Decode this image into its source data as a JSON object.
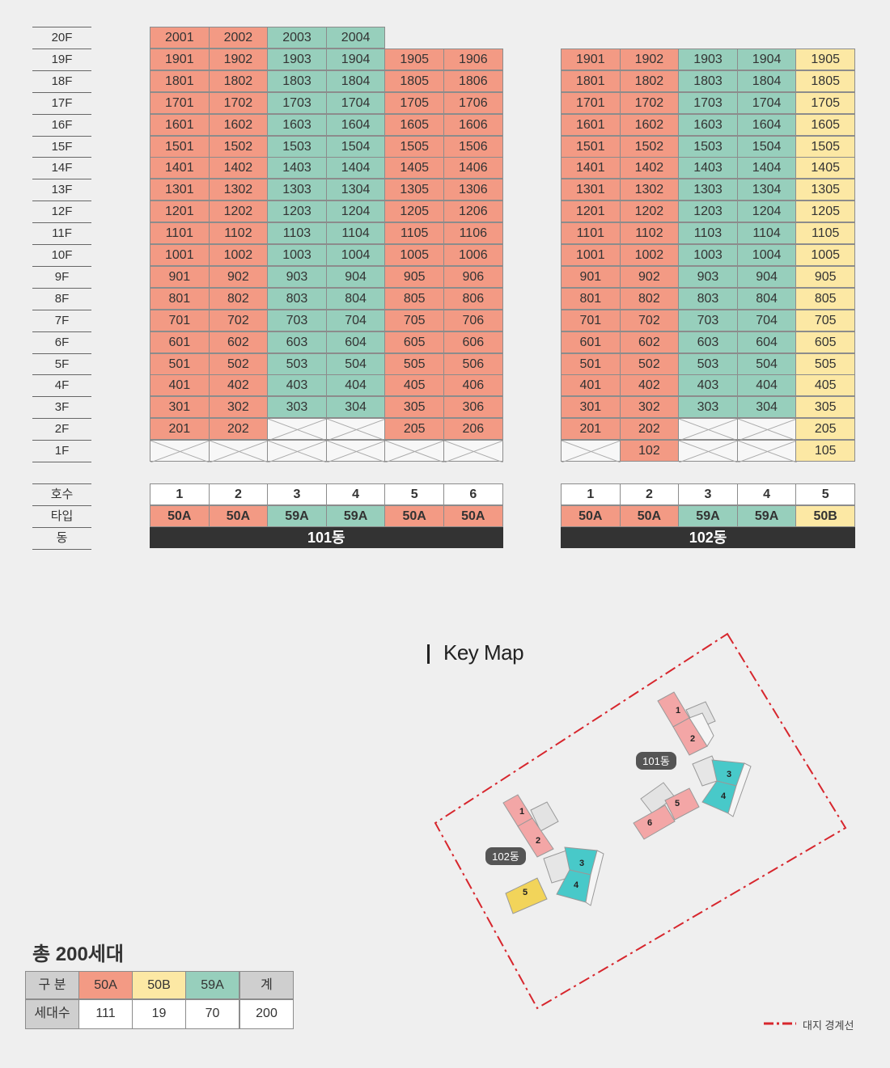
{
  "floors": [
    "20F",
    "19F",
    "18F",
    "17F",
    "16F",
    "15F",
    "14F",
    "13F",
    "12F",
    "11F",
    "10F",
    "9F",
    "8F",
    "7F",
    "6F",
    "5F",
    "4F",
    "3F",
    "2F",
    "1F"
  ],
  "bottom_labels": [
    "호수",
    "타입",
    "동"
  ],
  "colors": {
    "50A": "#f39a84",
    "59A": "#97cfbc",
    "50B": "#fce8a4",
    "boundary": "#d7262d"
  },
  "building101": {
    "name": "101동",
    "units": [
      "1",
      "2",
      "3",
      "4",
      "5",
      "6"
    ],
    "types": [
      "50A",
      "50A",
      "59A",
      "59A",
      "50A",
      "50A"
    ],
    "rows": [
      [
        "2001",
        "2002",
        "2003",
        "2004",
        null,
        null
      ],
      [
        "1901",
        "1902",
        "1903",
        "1904",
        "1905",
        "1906"
      ],
      [
        "1801",
        "1802",
        "1803",
        "1804",
        "1805",
        "1806"
      ],
      [
        "1701",
        "1702",
        "1703",
        "1704",
        "1705",
        "1706"
      ],
      [
        "1601",
        "1602",
        "1603",
        "1604",
        "1605",
        "1606"
      ],
      [
        "1501",
        "1502",
        "1503",
        "1504",
        "1505",
        "1506"
      ],
      [
        "1401",
        "1402",
        "1403",
        "1404",
        "1405",
        "1406"
      ],
      [
        "1301",
        "1302",
        "1303",
        "1304",
        "1305",
        "1306"
      ],
      [
        "1201",
        "1202",
        "1203",
        "1204",
        "1205",
        "1206"
      ],
      [
        "1101",
        "1102",
        "1103",
        "1104",
        "1105",
        "1106"
      ],
      [
        "1001",
        "1002",
        "1003",
        "1004",
        "1005",
        "1006"
      ],
      [
        "901",
        "902",
        "903",
        "904",
        "905",
        "906"
      ],
      [
        "801",
        "802",
        "803",
        "804",
        "805",
        "806"
      ],
      [
        "701",
        "702",
        "703",
        "704",
        "705",
        "706"
      ],
      [
        "601",
        "602",
        "603",
        "604",
        "605",
        "606"
      ],
      [
        "501",
        "502",
        "503",
        "504",
        "505",
        "506"
      ],
      [
        "401",
        "402",
        "403",
        "404",
        "405",
        "406"
      ],
      [
        "301",
        "302",
        "303",
        "304",
        "305",
        "306"
      ],
      [
        "201",
        "202",
        "X",
        "X",
        "205",
        "206"
      ],
      [
        "X",
        "X",
        "X",
        "X",
        "X",
        "X"
      ]
    ]
  },
  "building102": {
    "name": "102동",
    "units": [
      "1",
      "2",
      "3",
      "4",
      "5"
    ],
    "types": [
      "50A",
      "50A",
      "59A",
      "59A",
      "50B"
    ],
    "rows": [
      [
        null,
        null,
        null,
        null,
        null
      ],
      [
        "1901",
        "1902",
        "1903",
        "1904",
        "1905"
      ],
      [
        "1801",
        "1802",
        "1803",
        "1804",
        "1805"
      ],
      [
        "1701",
        "1702",
        "1703",
        "1704",
        "1705"
      ],
      [
        "1601",
        "1602",
        "1603",
        "1604",
        "1605"
      ],
      [
        "1501",
        "1502",
        "1503",
        "1504",
        "1505"
      ],
      [
        "1401",
        "1402",
        "1403",
        "1404",
        "1405"
      ],
      [
        "1301",
        "1302",
        "1303",
        "1304",
        "1305"
      ],
      [
        "1201",
        "1202",
        "1203",
        "1204",
        "1205"
      ],
      [
        "1101",
        "1102",
        "1103",
        "1104",
        "1105"
      ],
      [
        "1001",
        "1002",
        "1003",
        "1004",
        "1005"
      ],
      [
        "901",
        "902",
        "903",
        "904",
        "905"
      ],
      [
        "801",
        "802",
        "803",
        "804",
        "805"
      ],
      [
        "701",
        "702",
        "703",
        "704",
        "705"
      ],
      [
        "601",
        "602",
        "603",
        "604",
        "605"
      ],
      [
        "501",
        "502",
        "503",
        "504",
        "505"
      ],
      [
        "401",
        "402",
        "403",
        "404",
        "405"
      ],
      [
        "301",
        "302",
        "303",
        "304",
        "305"
      ],
      [
        "201",
        "202",
        "X",
        "X",
        "205"
      ],
      [
        "X",
        "102",
        "X",
        "X",
        "105"
      ]
    ]
  },
  "keymap": {
    "title": "Key Map",
    "label101": "101동",
    "label102": "102동",
    "units101": [
      "1",
      "2",
      "3",
      "4",
      "5",
      "6"
    ],
    "units102": [
      "1",
      "2",
      "3",
      "4",
      "5"
    ],
    "legend": "대지 경계선"
  },
  "summary": {
    "title": "총 200세대",
    "headers": [
      "구 분",
      "50A",
      "50B",
      "59A",
      "계"
    ],
    "row_label": "세대수",
    "values": [
      "111",
      "19",
      "70",
      "200"
    ]
  }
}
